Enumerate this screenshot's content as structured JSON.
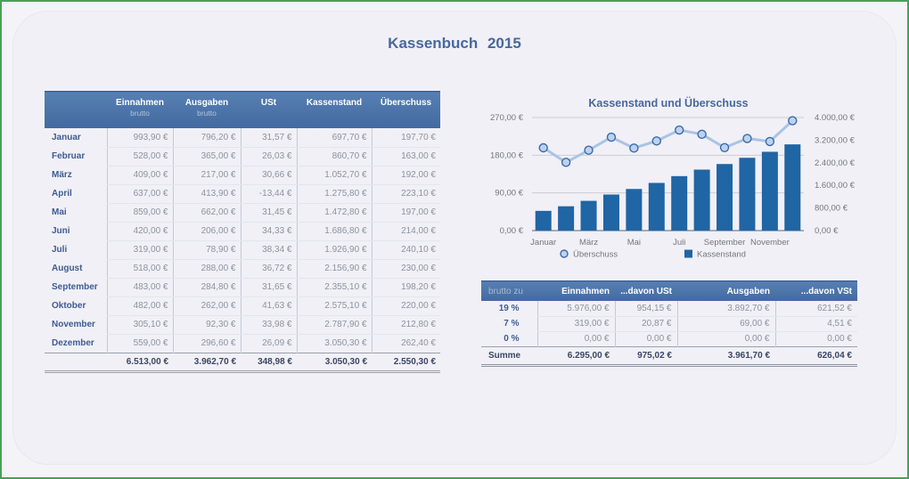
{
  "title": "Kassenbuch 2015",
  "colors": {
    "frame_green": "#4a9f58",
    "header_blue": "#4a72a7",
    "accent_blue": "#48689d"
  },
  "main_table": {
    "columns": [
      {
        "label": "Einnahmen",
        "sub": "brutto"
      },
      {
        "label": "Ausgaben",
        "sub": "brutto"
      },
      {
        "label": "USt",
        "sub": ""
      },
      {
        "label": "Kassenstand",
        "sub": ""
      },
      {
        "label": "Überschuss",
        "sub": ""
      }
    ],
    "rows": [
      {
        "month": "Januar",
        "values": [
          "993,90 €",
          "796,20 €",
          "31,57 €",
          "697,70 €",
          "197,70 €"
        ]
      },
      {
        "month": "Februar",
        "values": [
          "528,00 €",
          "365,00 €",
          "26,03 €",
          "860,70 €",
          "163,00 €"
        ]
      },
      {
        "month": "März",
        "values": [
          "409,00 €",
          "217,00 €",
          "30,66 €",
          "1.052,70 €",
          "192,00 €"
        ]
      },
      {
        "month": "April",
        "values": [
          "637,00 €",
          "413,90 €",
          "-13,44 €",
          "1.275,80 €",
          "223,10 €"
        ]
      },
      {
        "month": "Mai",
        "values": [
          "859,00 €",
          "662,00 €",
          "31,45 €",
          "1.472,80 €",
          "197,00 €"
        ]
      },
      {
        "month": "Juni",
        "values": [
          "420,00 €",
          "206,00 €",
          "34,33 €",
          "1.686,80 €",
          "214,00 €"
        ]
      },
      {
        "month": "Juli",
        "values": [
          "319,00 €",
          "78,90 €",
          "38,34 €",
          "1.926,90 €",
          "240,10 €"
        ]
      },
      {
        "month": "August",
        "values": [
          "518,00 €",
          "288,00 €",
          "36,72 €",
          "2.156,90 €",
          "230,00 €"
        ]
      },
      {
        "month": "September",
        "values": [
          "483,00 €",
          "284,80 €",
          "31,65 €",
          "2.355,10 €",
          "198,20 €"
        ]
      },
      {
        "month": "Oktober",
        "values": [
          "482,00 €",
          "262,00 €",
          "41,63 €",
          "2.575,10 €",
          "220,00 €"
        ]
      },
      {
        "month": "November",
        "values": [
          "305,10 €",
          "92,30 €",
          "33,98 €",
          "2.787,90 €",
          "212,80 €"
        ]
      },
      {
        "month": "Dezember",
        "values": [
          "559,00 €",
          "296,60 €",
          "26,09 €",
          "3.050,30 €",
          "262,40 €"
        ]
      }
    ],
    "total": {
      "values": [
        "6.513,00 €",
        "3.962,70 €",
        "348,98 €",
        "3.050,30 €",
        "2.550,30 €"
      ]
    }
  },
  "chart_data": {
    "type": "combo",
    "title": "Kassenstand und Überschuss",
    "categories": [
      "Januar",
      "Februar",
      "März",
      "April",
      "Mai",
      "Juni",
      "Juli",
      "August",
      "September",
      "Oktober",
      "November",
      "Dezember"
    ],
    "x_tick_labels": [
      "Januar",
      "März",
      "Mai",
      "Juli",
      "September",
      "November"
    ],
    "series": [
      {
        "name": "Überschuss",
        "type": "line",
        "axis": "left",
        "line_color": "#a9c4e4",
        "marker_fill": "#bad3f0",
        "marker_stroke": "#3e68a8",
        "values": [
          197.7,
          163.0,
          192.0,
          223.1,
          197.0,
          214.0,
          240.1,
          230.0,
          198.2,
          220.0,
          212.8,
          262.4
        ]
      },
      {
        "name": "Kassenstand",
        "type": "bar",
        "axis": "right",
        "color": "#2065a4",
        "values": [
          697.7,
          860.7,
          1052.7,
          1275.8,
          1472.8,
          1686.8,
          1926.9,
          2156.9,
          2355.1,
          2575.1,
          2787.9,
          3050.3
        ]
      }
    ],
    "left_axis": {
      "min": 0,
      "max": 270,
      "step": 90,
      "tick_labels": [
        "0,00 €",
        "90,00 €",
        "180,00 €",
        "270,00 €"
      ]
    },
    "right_axis": {
      "min": 0,
      "max": 4000,
      "step": 800,
      "tick_labels": [
        "0,00 €",
        "800,00 €",
        "1.600,00 €",
        "2.400,00 €",
        "3.200,00 €",
        "4.000,00 €"
      ]
    },
    "legend": [
      {
        "label": "Überschuss",
        "marker": "circle"
      },
      {
        "label": "Kassenstand",
        "marker": "square"
      }
    ]
  },
  "summary_table": {
    "header": [
      "brutto zu",
      "Einnahmen",
      "...davon USt",
      "Ausgaben",
      "...davon VSt"
    ],
    "rows": [
      {
        "label": "19 %",
        "values": [
          "5.976,00 €",
          "954,15 €",
          "3.892,70 €",
          "621,52 €"
        ]
      },
      {
        "label": "7 %",
        "values": [
          "319,00 €",
          "20,87 €",
          "69,00 €",
          "4,51 €"
        ]
      },
      {
        "label": "0 %",
        "values": [
          "0,00 €",
          "0,00 €",
          "0,00 €",
          "0,00 €"
        ]
      }
    ],
    "total": {
      "label": "Summe",
      "values": [
        "6.295,00 €",
        "975,02 €",
        "3.961,70 €",
        "626,04 €"
      ]
    }
  }
}
